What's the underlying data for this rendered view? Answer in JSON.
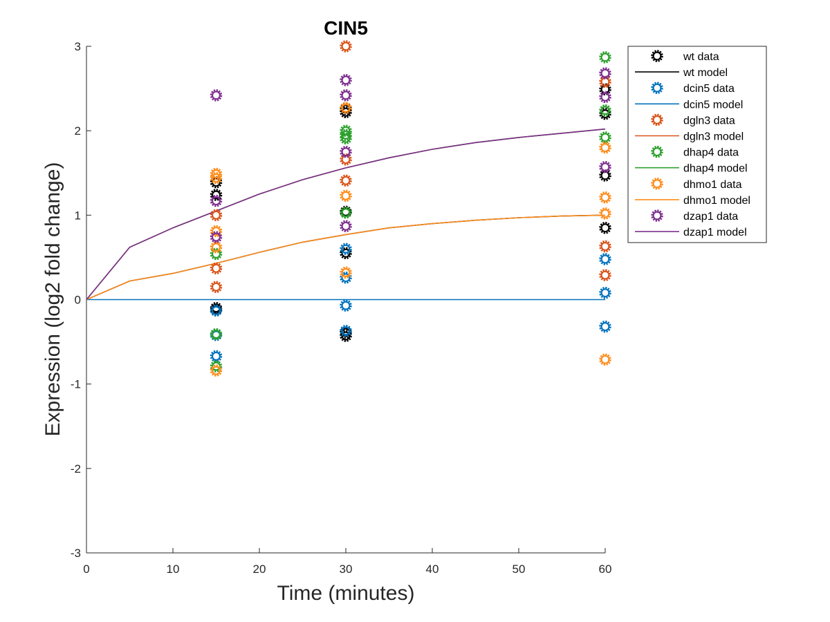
{
  "chart_data": {
    "type": "scatter",
    "title": "CIN5",
    "xlabel": "Time (minutes)",
    "ylabel": "Expression (log2 fold change)",
    "xlim": [
      0,
      60
    ],
    "ylim": [
      -3,
      3
    ],
    "xticks": [
      0,
      10,
      20,
      30,
      40,
      50,
      60
    ],
    "yticks": [
      -3,
      -2,
      -1,
      0,
      1,
      2,
      3
    ],
    "grid": false,
    "legend_position": "top-right outside",
    "series": [
      {
        "name": "wt",
        "data_label": "wt data",
        "model_label": "wt model",
        "color": "#000000",
        "data": [
          {
            "x": 15,
            "y": 1.39
          },
          {
            "x": 15,
            "y": 1.24
          },
          {
            "x": 15,
            "y": -0.1
          },
          {
            "x": 15,
            "y": -0.12
          },
          {
            "x": 30,
            "y": 2.26
          },
          {
            "x": 30,
            "y": 2.22
          },
          {
            "x": 30,
            "y": 1.04
          },
          {
            "x": 30,
            "y": 0.55
          },
          {
            "x": 30,
            "y": -0.39
          },
          {
            "x": 30,
            "y": -0.43
          },
          {
            "x": 60,
            "y": 2.49
          },
          {
            "x": 60,
            "y": 2.2
          },
          {
            "x": 60,
            "y": 1.47
          },
          {
            "x": 60,
            "y": 0.85
          }
        ],
        "model": {
          "x": [
            0,
            5,
            10,
            15,
            20,
            25,
            30,
            35,
            40,
            45,
            50,
            55,
            60
          ],
          "y": [
            0,
            0.22,
            0.31,
            0.43,
            0.56,
            0.68,
            0.77,
            0.85,
            0.9,
            0.94,
            0.97,
            0.99,
            1.0
          ]
        }
      },
      {
        "name": "dcin5",
        "data_label": "dcin5 data",
        "model_label": "dcin5 model",
        "color": "#0072BD",
        "data": [
          {
            "x": 15,
            "y": -0.67
          },
          {
            "x": 15,
            "y": -0.42
          },
          {
            "x": 15,
            "y": -0.13
          },
          {
            "x": 30,
            "y": 0.6
          },
          {
            "x": 30,
            "y": 0.26
          },
          {
            "x": 30,
            "y": -0.07
          },
          {
            "x": 30,
            "y": -0.37
          },
          {
            "x": 60,
            "y": 0.48
          },
          {
            "x": 60,
            "y": 0.08
          },
          {
            "x": 60,
            "y": -0.32
          }
        ],
        "model": {
          "x": [
            0,
            60
          ],
          "y": [
            0,
            0
          ]
        }
      },
      {
        "name": "dgln3",
        "data_label": "dgln3 data",
        "model_label": "dgln3 model",
        "color": "#D95319",
        "data": [
          {
            "x": 15,
            "y": 1.0
          },
          {
            "x": 15,
            "y": 0.37
          },
          {
            "x": 15,
            "y": 0.15
          },
          {
            "x": 30,
            "y": 3.0
          },
          {
            "x": 30,
            "y": 1.66
          },
          {
            "x": 30,
            "y": 1.41
          },
          {
            "x": 60,
            "y": 2.58
          },
          {
            "x": 60,
            "y": 0.63
          },
          {
            "x": 60,
            "y": 0.29
          }
        ],
        "model": {
          "x": [
            0,
            5,
            10,
            15,
            20,
            25,
            30,
            35,
            40,
            45,
            50,
            55,
            60
          ],
          "y": [
            0,
            0.62,
            0.85,
            1.05,
            1.25,
            1.42,
            1.56,
            1.68,
            1.78,
            1.86,
            1.92,
            1.97,
            2.02
          ]
        }
      },
      {
        "name": "dhap4",
        "data_label": "dhap4 data",
        "model_label": "dhap4 model",
        "color": "#2CA02C",
        "data": [
          {
            "x": 15,
            "y": 0.54
          },
          {
            "x": 15,
            "y": -0.41
          },
          {
            "x": 15,
            "y": -0.79
          },
          {
            "x": 30,
            "y": 2.0
          },
          {
            "x": 30,
            "y": 1.95
          },
          {
            "x": 30,
            "y": 1.91
          },
          {
            "x": 30,
            "y": 1.03
          },
          {
            "x": 60,
            "y": 2.87
          },
          {
            "x": 60,
            "y": 2.24
          },
          {
            "x": 60,
            "y": 1.92
          }
        ],
        "model": {
          "x": [
            0,
            5,
            10,
            15,
            20,
            25,
            30,
            35,
            40,
            45,
            50,
            55,
            60
          ],
          "y": [
            0,
            0.62,
            0.85,
            1.05,
            1.25,
            1.42,
            1.56,
            1.68,
            1.78,
            1.86,
            1.92,
            1.97,
            2.02
          ]
        }
      },
      {
        "name": "dhmo1",
        "data_label": "dhmo1 data",
        "model_label": "dhmo1 model",
        "color": "#FF8C1A",
        "data": [
          {
            "x": 15,
            "y": 1.49
          },
          {
            "x": 15,
            "y": 1.44
          },
          {
            "x": 15,
            "y": 0.81
          },
          {
            "x": 15,
            "y": 0.62
          },
          {
            "x": 15,
            "y": -0.84
          },
          {
            "x": 30,
            "y": 2.27
          },
          {
            "x": 30,
            "y": 1.23
          },
          {
            "x": 30,
            "y": 0.32
          },
          {
            "x": 60,
            "y": 1.8
          },
          {
            "x": 60,
            "y": 1.21
          },
          {
            "x": 60,
            "y": 1.02
          },
          {
            "x": 60,
            "y": -0.71
          }
        ],
        "model": {
          "x": [
            0,
            5,
            10,
            15,
            20,
            25,
            30,
            35,
            40,
            45,
            50,
            55,
            60
          ],
          "y": [
            0,
            0.22,
            0.31,
            0.43,
            0.56,
            0.68,
            0.77,
            0.85,
            0.9,
            0.94,
            0.97,
            0.99,
            1.0
          ]
        }
      },
      {
        "name": "dzap1",
        "data_label": "dzap1 data",
        "model_label": "dzap1 model",
        "color": "#7E2F8E",
        "data": [
          {
            "x": 15,
            "y": 2.42
          },
          {
            "x": 15,
            "y": 1.17
          },
          {
            "x": 15,
            "y": 0.74
          },
          {
            "x": 30,
            "y": 2.6
          },
          {
            "x": 30,
            "y": 2.42
          },
          {
            "x": 30,
            "y": 1.75
          },
          {
            "x": 30,
            "y": 0.87
          },
          {
            "x": 60,
            "y": 2.68
          },
          {
            "x": 60,
            "y": 2.4
          },
          {
            "x": 60,
            "y": 1.57
          }
        ],
        "model": {
          "x": [
            0,
            5,
            10,
            15,
            20,
            25,
            30,
            35,
            40,
            45,
            50,
            55,
            60
          ],
          "y": [
            0,
            0.62,
            0.85,
            1.05,
            1.25,
            1.42,
            1.56,
            1.68,
            1.78,
            1.86,
            1.92,
            1.97,
            2.02
          ]
        }
      }
    ]
  }
}
